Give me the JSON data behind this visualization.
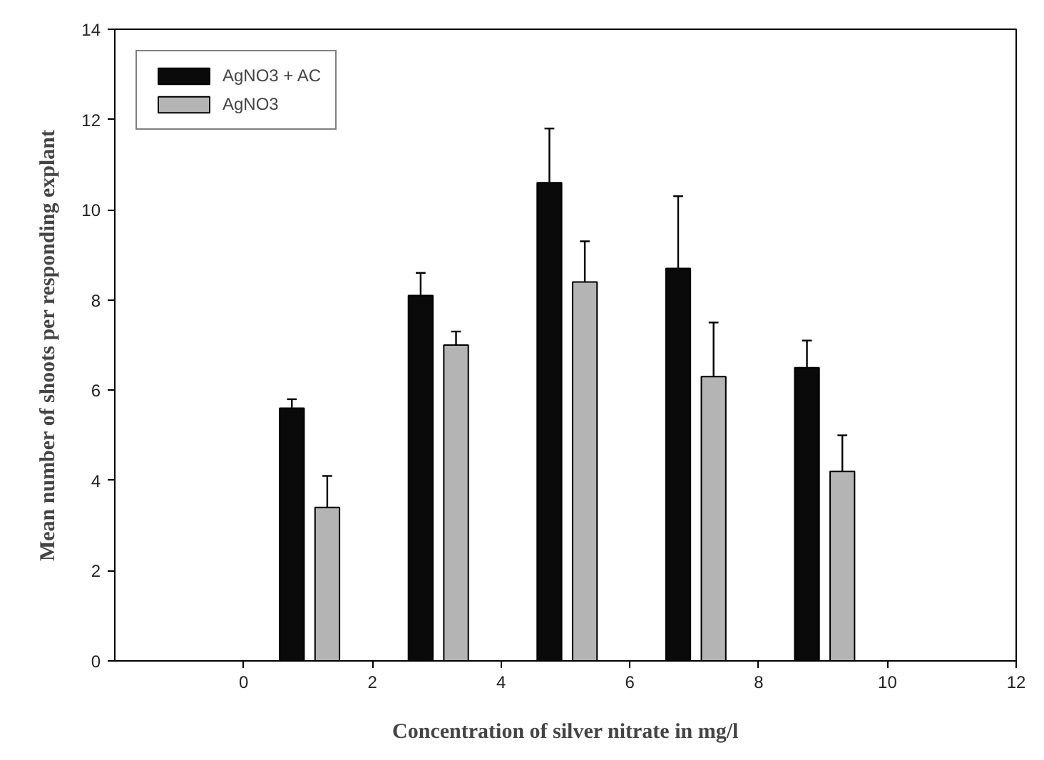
{
  "chart_data": {
    "type": "bar",
    "xlabel": "Concentration of silver nitrate in mg/l",
    "ylabel": "Mean number of shoots per responding explant",
    "xlim": [
      -2,
      12
    ],
    "xticks": [
      0,
      2,
      4,
      6,
      8,
      10,
      12
    ],
    "ylim": [
      0,
      14
    ],
    "yticks": [
      0,
      2,
      4,
      6,
      8,
      10,
      12,
      14
    ],
    "grid": false,
    "legend": "top left",
    "series": [
      {
        "name": "AgNO3 + AC",
        "color": "#0a0a0a",
        "x": [
          0.75,
          2.75,
          4.75,
          6.75,
          8.75
        ],
        "values": [
          5.6,
          8.1,
          10.6,
          8.7,
          6.5
        ],
        "errors": [
          [
            5.6,
            5.8
          ],
          [
            8.1,
            8.6
          ],
          [
            10.6,
            11.8
          ],
          [
            8.7,
            10.3
          ],
          [
            6.5,
            7.1
          ]
        ]
      },
      {
        "name": "AgNO3",
        "color": "#b4b4b4",
        "x": [
          1.3,
          3.3,
          5.3,
          7.3,
          9.3
        ],
        "values": [
          3.4,
          7.0,
          8.4,
          6.3,
          4.2
        ],
        "errors": [
          [
            3.4,
            4.1
          ],
          [
            7.0,
            7.3
          ],
          [
            8.4,
            9.3
          ],
          [
            6.3,
            7.5
          ],
          [
            4.2,
            5.0
          ]
        ]
      }
    ]
  }
}
